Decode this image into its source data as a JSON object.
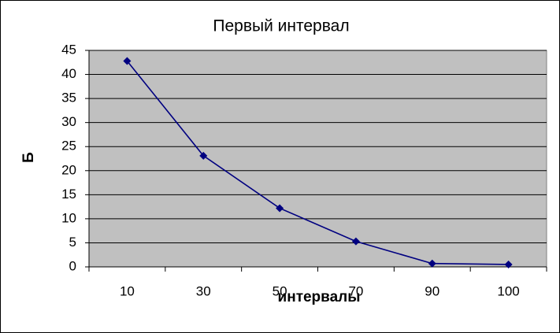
{
  "chart_data": {
    "type": "line",
    "title": "Первый интервал",
    "x_label": "интервалы",
    "y_label": "Б",
    "categories": [
      "10",
      "30",
      "50",
      "70",
      "90",
      "100"
    ],
    "values": [
      42.8,
      23.1,
      12.2,
      5.3,
      0.7,
      0.5
    ],
    "color": "#000080",
    "ylim": [
      0,
      45
    ],
    "yticks": [
      0,
      5,
      10,
      15,
      20,
      25,
      30,
      35,
      40,
      45
    ],
    "grid": true,
    "plot_background": "#c0c0c0"
  }
}
